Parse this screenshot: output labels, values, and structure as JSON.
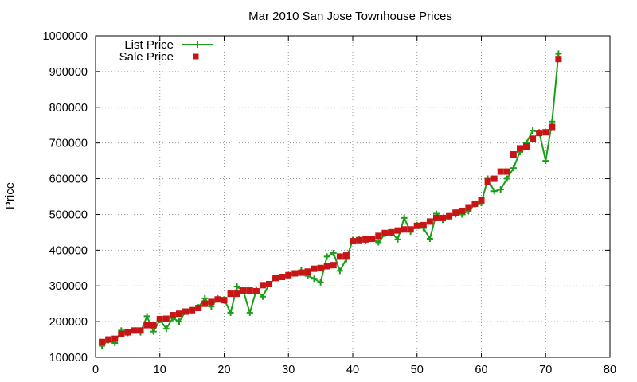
{
  "chart_data": {
    "type": "line",
    "title": "Mar 2010 San Jose Townhouse Prices",
    "xlabel": "",
    "ylabel": "Price",
    "xlim": [
      0,
      80
    ],
    "ylim": [
      100000,
      1000000
    ],
    "xticks": [
      0,
      10,
      20,
      30,
      40,
      50,
      60,
      70,
      80
    ],
    "yticks": [
      100000,
      200000,
      300000,
      400000,
      500000,
      600000,
      700000,
      800000,
      900000,
      1000000
    ],
    "grid": true,
    "legend_position": "top-left",
    "series": [
      {
        "name": "List Price",
        "style": "line-with-plus-markers",
        "color": "#1a9e1a",
        "points": [
          [
            1,
            132000
          ],
          [
            2,
            148000
          ],
          [
            3,
            140000
          ],
          [
            4,
            175000
          ],
          [
            5,
            168000
          ],
          [
            6,
            175000
          ],
          [
            7,
            170000
          ],
          [
            8,
            215000
          ],
          [
            9,
            172000
          ],
          [
            10,
            205000
          ],
          [
            11,
            180000
          ],
          [
            12,
            210000
          ],
          [
            13,
            200000
          ],
          [
            14,
            228000
          ],
          [
            15,
            232000
          ],
          [
            16,
            240000
          ],
          [
            17,
            265000
          ],
          [
            18,
            242000
          ],
          [
            19,
            265000
          ],
          [
            20,
            262000
          ],
          [
            21,
            225000
          ],
          [
            22,
            298000
          ],
          [
            23,
            285000
          ],
          [
            24,
            225000
          ],
          [
            25,
            288000
          ],
          [
            26,
            270000
          ],
          [
            27,
            305000
          ],
          [
            28,
            322000
          ],
          [
            29,
            325000
          ],
          [
            30,
            330000
          ],
          [
            31,
            335000
          ],
          [
            32,
            343000
          ],
          [
            33,
            328000
          ],
          [
            34,
            320000
          ],
          [
            35,
            310000
          ],
          [
            36,
            382000
          ],
          [
            37,
            392000
          ],
          [
            38,
            342000
          ],
          [
            39,
            375000
          ],
          [
            40,
            428000
          ],
          [
            41,
            430000
          ],
          [
            42,
            425000
          ],
          [
            43,
            432000
          ],
          [
            44,
            422000
          ],
          [
            45,
            445000
          ],
          [
            46,
            450000
          ],
          [
            47,
            430000
          ],
          [
            48,
            490000
          ],
          [
            49,
            452000
          ],
          [
            50,
            470000
          ],
          [
            51,
            462000
          ],
          [
            52,
            432000
          ],
          [
            53,
            502000
          ],
          [
            54,
            485000
          ],
          [
            55,
            495000
          ],
          [
            56,
            500000
          ],
          [
            57,
            500000
          ],
          [
            58,
            510000
          ],
          [
            59,
            528000
          ],
          [
            60,
            532000
          ],
          [
            61,
            600000
          ],
          [
            62,
            565000
          ],
          [
            63,
            570000
          ],
          [
            64,
            600000
          ],
          [
            65,
            630000
          ],
          [
            66,
            675000
          ],
          [
            67,
            700000
          ],
          [
            68,
            735000
          ],
          [
            69,
            730000
          ],
          [
            70,
            650000
          ],
          [
            71,
            760000
          ],
          [
            72,
            950000
          ]
        ]
      },
      {
        "name": "Sale Price",
        "style": "square-markers",
        "color": "#c81414",
        "points": [
          [
            1,
            143000
          ],
          [
            2,
            150000
          ],
          [
            3,
            152000
          ],
          [
            4,
            165000
          ],
          [
            5,
            170000
          ],
          [
            6,
            175000
          ],
          [
            7,
            175000
          ],
          [
            8,
            190000
          ],
          [
            9,
            190000
          ],
          [
            10,
            207000
          ],
          [
            11,
            208000
          ],
          [
            12,
            218000
          ],
          [
            13,
            222000
          ],
          [
            14,
            228000
          ],
          [
            15,
            232000
          ],
          [
            16,
            238000
          ],
          [
            17,
            250000
          ],
          [
            18,
            255000
          ],
          [
            19,
            262000
          ],
          [
            20,
            260000
          ],
          [
            21,
            278000
          ],
          [
            22,
            278000
          ],
          [
            23,
            287000
          ],
          [
            24,
            287000
          ],
          [
            25,
            285000
          ],
          [
            26,
            302000
          ],
          [
            27,
            305000
          ],
          [
            28,
            322000
          ],
          [
            29,
            325000
          ],
          [
            30,
            330000
          ],
          [
            31,
            335000
          ],
          [
            32,
            337000
          ],
          [
            33,
            340000
          ],
          [
            34,
            348000
          ],
          [
            35,
            350000
          ],
          [
            36,
            355000
          ],
          [
            37,
            358000
          ],
          [
            38,
            382000
          ],
          [
            39,
            385000
          ],
          [
            40,
            425000
          ],
          [
            41,
            428000
          ],
          [
            42,
            430000
          ],
          [
            43,
            432000
          ],
          [
            44,
            440000
          ],
          [
            45,
            448000
          ],
          [
            46,
            450000
          ],
          [
            47,
            455000
          ],
          [
            48,
            458000
          ],
          [
            49,
            458000
          ],
          [
            50,
            468000
          ],
          [
            51,
            470000
          ],
          [
            52,
            480000
          ],
          [
            53,
            490000
          ],
          [
            54,
            490000
          ],
          [
            55,
            495000
          ],
          [
            56,
            505000
          ],
          [
            57,
            510000
          ],
          [
            58,
            520000
          ],
          [
            59,
            530000
          ],
          [
            60,
            540000
          ],
          [
            61,
            592000
          ],
          [
            62,
            600000
          ],
          [
            63,
            620000
          ],
          [
            64,
            620000
          ],
          [
            65,
            668000
          ],
          [
            66,
            685000
          ],
          [
            67,
            690000
          ],
          [
            68,
            712000
          ],
          [
            69,
            728000
          ],
          [
            70,
            730000
          ],
          [
            71,
            745000
          ],
          [
            72,
            935000
          ]
        ]
      }
    ]
  }
}
